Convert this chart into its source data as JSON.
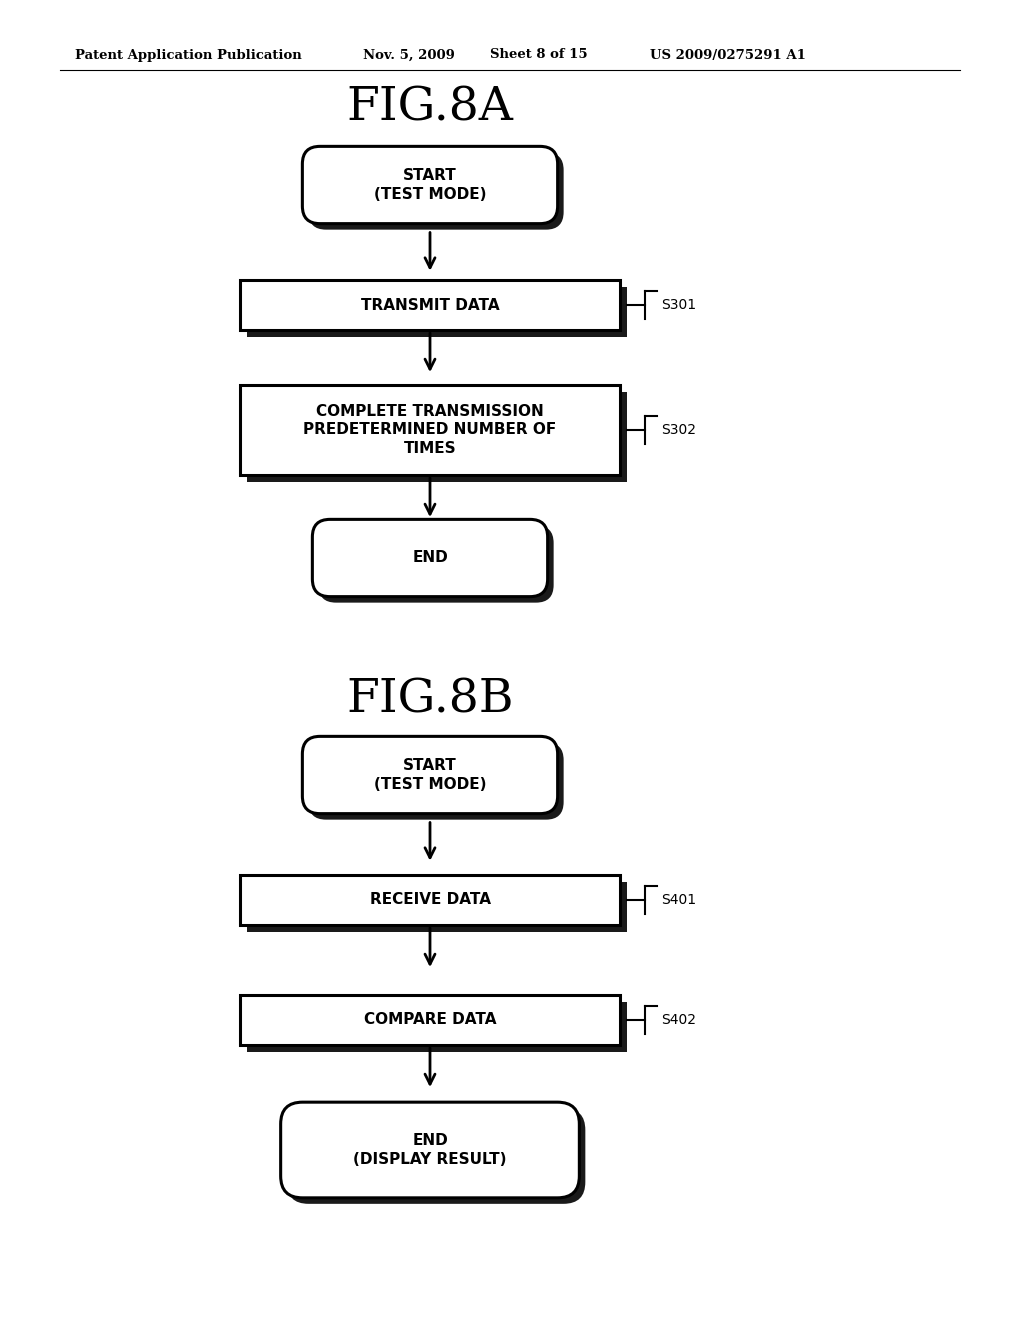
{
  "bg_color": "#ffffff",
  "header_text": "Patent Application Publication",
  "header_date": "Nov. 5, 2009",
  "header_sheet": "Sheet 8 of 15",
  "header_patent": "US 2009/0275291 A1",
  "fig8a_title": "FIG.8A",
  "fig8b_title": "FIG.8B",
  "line_color": "#000000",
  "text_color": "#000000"
}
